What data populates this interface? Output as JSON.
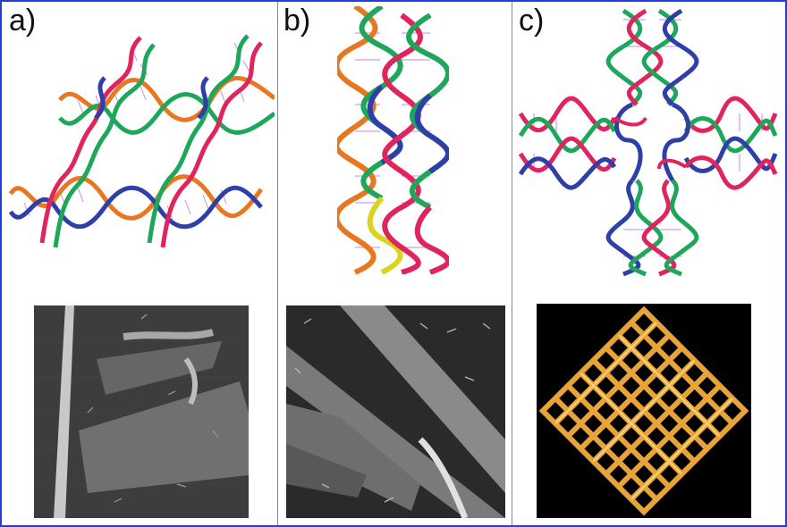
{
  "figure": {
    "border_color": "#1f3fd6",
    "panels": [
      {
        "label": "a)",
        "model": "dna-double-crossover-lattice-model",
        "image": "afm-image-lattice-sheets",
        "strand_colors": [
          "#e0245e",
          "#1ea65a",
          "#e87722",
          "#2f3fa8"
        ]
      },
      {
        "label": "b)",
        "model": "dna-double-crossover-ribbon-model",
        "image": "afm-image-ribbons",
        "strand_colors": [
          "#e87722",
          "#2f3fa8",
          "#e0245e",
          "#1ea65a",
          "#d8d420"
        ]
      },
      {
        "label": "c)",
        "model": "dna-four-by-four-cross-tile-model",
        "image": "afm-image-grid-lattice",
        "strand_colors": [
          "#1ea65a",
          "#2f3fa8",
          "#e0245e"
        ],
        "grid_color": "#e8a438"
      }
    ]
  }
}
